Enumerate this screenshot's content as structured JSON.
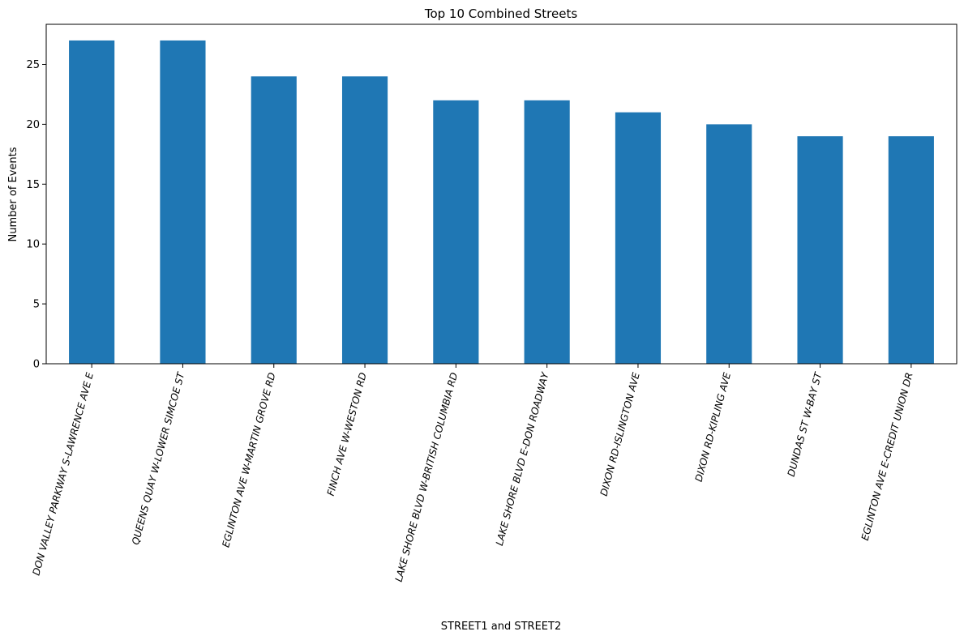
{
  "chart_data": {
    "type": "bar",
    "title": "Top 10 Combined Streets",
    "xlabel": "STREET1 and STREET2",
    "ylabel": "Number of Events",
    "categories": [
      "DON VALLEY PARKWAY  S-LAWRENCE AVE E",
      "QUEENS QUAY W-LOWER SIMCOE ST",
      "EGLINTON AVE W-MARTIN GROVE RD",
      "FINCH AVE W-WESTON RD",
      "LAKE SHORE BLVD W-BRITISH COLUMBIA RD",
      "LAKE SHORE BLVD E-DON ROADWAY",
      "DIXON RD-ISLINGTON AVE",
      "DIXON RD-KIPLING AVE",
      "DUNDAS ST W-BAY ST",
      "EGLINTON AVE E-CREDIT UNION DR"
    ],
    "values": [
      27,
      27,
      24,
      24,
      22,
      22,
      21,
      20,
      19,
      19
    ],
    "yticks": [
      0,
      5,
      10,
      15,
      20,
      25
    ],
    "ylim": [
      0,
      28.35
    ],
    "grid": false,
    "bar_color": "#1f77b4"
  }
}
